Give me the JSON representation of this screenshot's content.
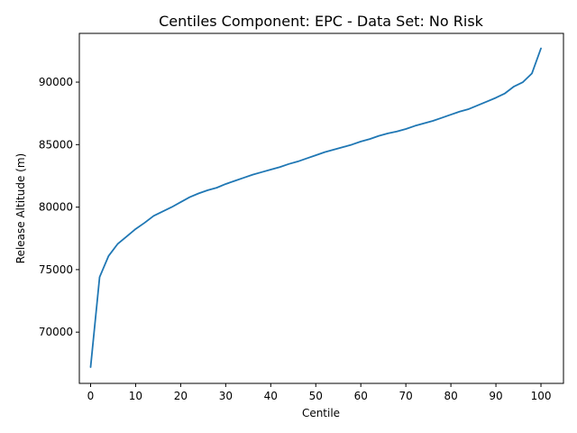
{
  "chart_data": {
    "type": "line",
    "title": "Centiles Component: EPC - Data Set: No Risk",
    "xlabel": "Centile",
    "ylabel": "Release Altitude (m)",
    "xlim": [
      -2.5,
      105
    ],
    "ylim": [
      65900,
      93900
    ],
    "xticks": [
      0,
      10,
      20,
      30,
      40,
      50,
      60,
      70,
      80,
      90,
      100
    ],
    "yticks": [
      70000,
      75000,
      80000,
      85000,
      90000
    ],
    "ytick_labels": [
      "70000",
      "75000",
      "80000",
      "85000",
      "90000"
    ],
    "grid": false,
    "color": "#1f77b4",
    "series": [
      {
        "x": [
          0,
          2,
          4,
          6,
          8,
          10,
          12,
          14,
          16,
          18,
          20,
          22,
          24,
          26,
          28,
          30,
          32,
          34,
          36,
          38,
          40,
          42,
          44,
          46,
          48,
          50,
          52,
          54,
          56,
          58,
          60,
          62,
          64,
          66,
          68,
          70,
          72,
          74,
          76,
          78,
          80,
          82,
          84,
          86,
          88,
          90,
          92,
          94,
          96,
          98,
          100
        ],
        "values": [
          67200,
          74400,
          76100,
          77050,
          77650,
          78250,
          78750,
          79300,
          79650,
          80000,
          80400,
          80800,
          81100,
          81350,
          81550,
          81850,
          82100,
          82350,
          82600,
          82800,
          83000,
          83200,
          83450,
          83650,
          83900,
          84150,
          84400,
          84600,
          84800,
          85000,
          85250,
          85450,
          85700,
          85900,
          86050,
          86250,
          86500,
          86700,
          86900,
          87150,
          87400,
          87650,
          87850,
          88150,
          88450,
          88750,
          89100,
          89650,
          90000,
          90700,
          92700
        ]
      }
    ]
  }
}
